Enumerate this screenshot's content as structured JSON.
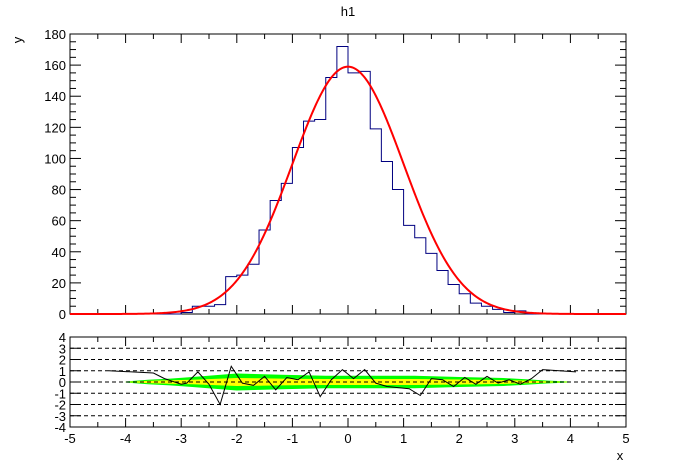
{
  "chart_data": [
    {
      "type": "bar",
      "title": "h1",
      "xlabel": "x",
      "ylabel": "y",
      "xlim": [
        -5,
        5
      ],
      "ylim": [
        0,
        180
      ],
      "y_ticks": [
        0,
        20,
        40,
        60,
        80,
        100,
        120,
        140,
        160,
        180
      ],
      "x_ticks": [
        -5,
        -4,
        -3,
        -2,
        -1,
        0,
        1,
        2,
        3,
        4,
        5
      ],
      "histogram": {
        "bin_width": 0.2,
        "x_start": -3.0,
        "values": [
          1,
          5,
          5,
          6,
          24,
          25,
          32,
          54,
          73,
          84,
          107,
          124,
          125,
          152,
          172,
          155,
          156,
          119,
          98,
          80,
          57,
          49,
          39,
          28,
          19,
          13,
          7,
          5,
          3,
          1,
          2
        ],
        "color": "#000080"
      },
      "fit": {
        "function": "gaussian",
        "constant": 159,
        "mean": 0,
        "sigma": 1.0,
        "color": "#ff0000"
      },
      "grid": false,
      "legend": "none"
    },
    {
      "type": "line",
      "xlim": [
        -5,
        5
      ],
      "ylim": [
        -4,
        4
      ],
      "y_ticks": [
        -4,
        -3,
        -2,
        -1,
        0,
        1,
        2,
        3,
        4
      ],
      "x_ticks": [
        -5,
        -4,
        -3,
        -2,
        -1,
        0,
        1,
        2,
        3,
        4,
        5
      ],
      "dashed_lines": [
        -3,
        -2,
        -1,
        0,
        1,
        2,
        3
      ],
      "band_colors": {
        "two_sigma": "#00ff00",
        "one_sigma": "#ffff00"
      },
      "residuals": {
        "x": [
          -4.3,
          -3.5,
          -3.3,
          -3.0,
          -2.9,
          -2.7,
          -2.5,
          -2.3,
          -2.1,
          -1.9,
          -1.7,
          -1.5,
          -1.3,
          -1.1,
          -0.9,
          -0.7,
          -0.5,
          -0.3,
          -0.1,
          0.1,
          0.3,
          0.5,
          0.7,
          0.9,
          1.1,
          1.3,
          1.5,
          1.7,
          1.9,
          2.1,
          2.3,
          2.5,
          2.7,
          2.9,
          3.1,
          3.3,
          3.5,
          4.1
        ],
        "y": [
          1.0,
          0.8,
          0.3,
          -0.2,
          -0.1,
          0.9,
          -0.2,
          -2.0,
          1.4,
          -0.1,
          -0.3,
          0.5,
          -0.7,
          0.4,
          0.2,
          0.9,
          -1.3,
          0.2,
          1.1,
          0.3,
          1.1,
          -0.1,
          -0.4,
          -0.5,
          -0.6,
          -1.2,
          0.3,
          0.2,
          -0.4,
          0.4,
          -0.2,
          0.5,
          -0.1,
          0.2,
          -0.2,
          0.3,
          1.1,
          0.9
        ],
        "color": "#000000"
      },
      "band_x": [
        -4.0,
        -3.6,
        -3.2,
        -2.8,
        -2.4,
        -2.0,
        -1.6,
        -1.2,
        -0.8,
        -0.4,
        0.0,
        0.4,
        0.8,
        1.2,
        1.6,
        2.0,
        2.4,
        2.8,
        3.2,
        3.6,
        4.0
      ],
      "band_2sigma_half": [
        0.05,
        0.2,
        0.3,
        0.45,
        0.6,
        0.75,
        0.7,
        0.65,
        0.6,
        0.55,
        0.55,
        0.55,
        0.55,
        0.55,
        0.5,
        0.45,
        0.4,
        0.35,
        0.25,
        0.12,
        0.05
      ],
      "band_1sigma_half": [
        0.02,
        0.1,
        0.15,
        0.2,
        0.28,
        0.35,
        0.33,
        0.3,
        0.28,
        0.27,
        0.27,
        0.27,
        0.27,
        0.27,
        0.25,
        0.22,
        0.2,
        0.17,
        0.12,
        0.06,
        0.02
      ],
      "xlabel": "x",
      "grid": false,
      "legend": "none"
    }
  ]
}
